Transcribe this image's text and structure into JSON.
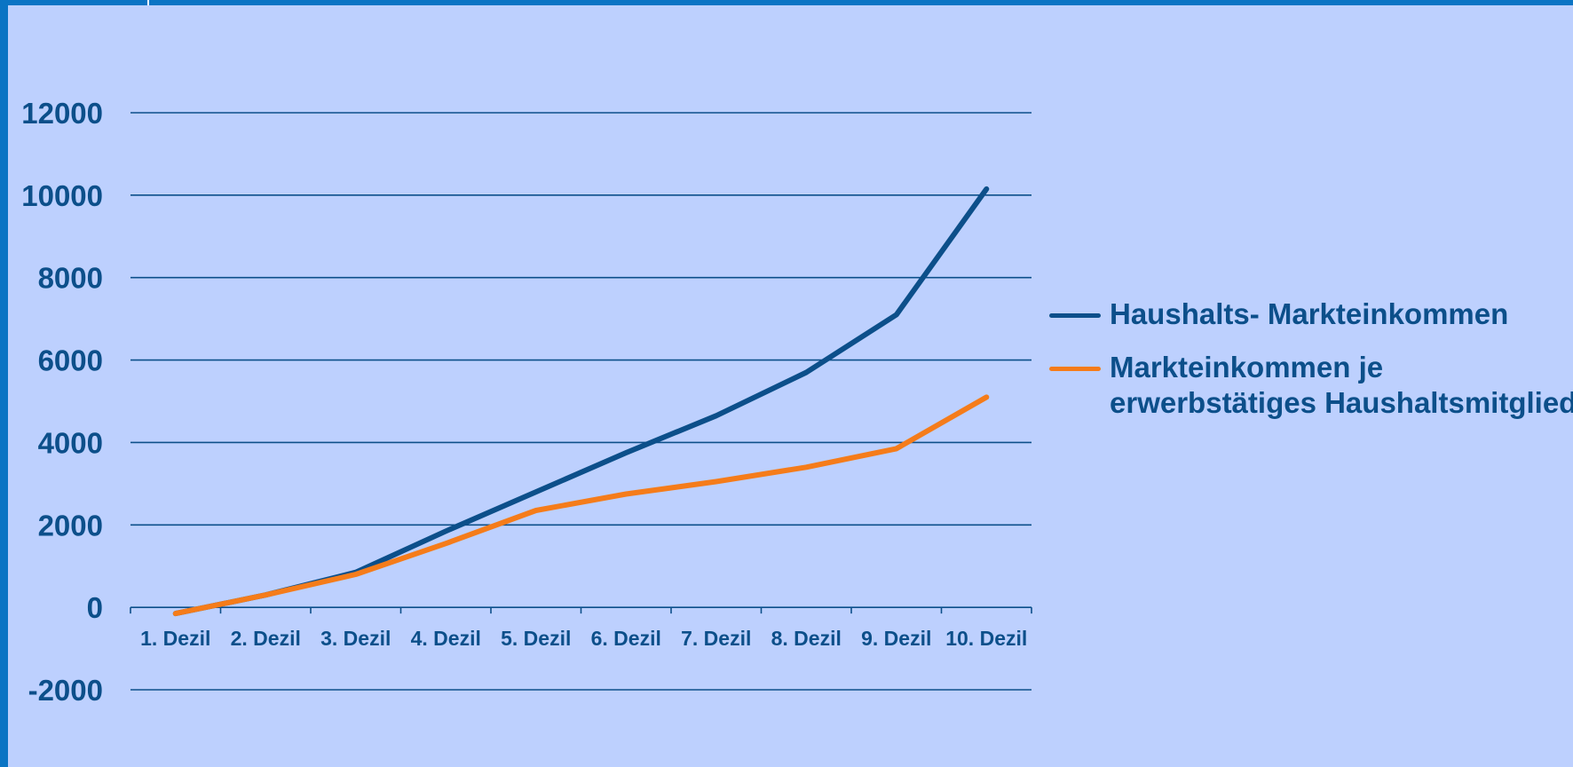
{
  "chart_data": {
    "type": "line",
    "categories": [
      "1. Dezil",
      "2. Dezil",
      "3. Dezil",
      "4. Dezil",
      "5. Dezil",
      "6. Dezil",
      "7. Dezil",
      "8. Dezil",
      "9. Dezil",
      "10. Dezil"
    ],
    "series": [
      {
        "name": "Haushalts- Markteinkommen",
        "color": "#0c4f8a",
        "values": [
          -150,
          300,
          850,
          1850,
          2800,
          3750,
          4650,
          5700,
          7100,
          10150
        ]
      },
      {
        "name": "Markteinkommen je erwerbstätiges Haushaltsmitglied",
        "color": "#f57c1a",
        "values": [
          -150,
          300,
          800,
          1550,
          2350,
          2750,
          3050,
          3400,
          3850,
          5100
        ]
      }
    ],
    "yticks": [
      "12000",
      "10000",
      "8000",
      "6000",
      "4000",
      "2000",
      "0",
      "-2000"
    ],
    "ylim": [
      -2000,
      12000
    ],
    "grid": true,
    "legend": "right",
    "title": "",
    "xlabel": "",
    "ylabel": ""
  }
}
